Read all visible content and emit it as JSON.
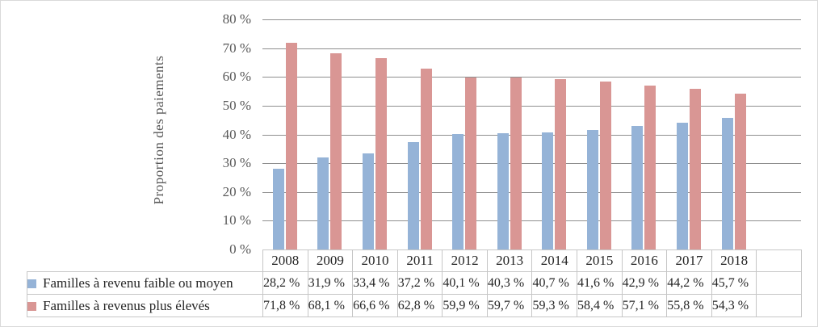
{
  "chart_data": {
    "type": "bar",
    "title": "",
    "xlabel": "",
    "ylabel": "Proportion des paiements",
    "ylim": [
      0,
      80
    ],
    "ytick_step": 10,
    "yticks": [
      "0 %",
      "10 %",
      "20 %",
      "30 %",
      "40 %",
      "50 %",
      "60 %",
      "70 %",
      "80 %"
    ],
    "grid": true,
    "legend_position": "data-table-left",
    "categories": [
      "2008",
      "2009",
      "2010",
      "2011",
      "2012",
      "2013",
      "2014",
      "2015",
      "2016",
      "2017",
      "2018"
    ],
    "trailing_empty_columns": 1,
    "series": [
      {
        "name": "Familles à revenu faible ou moyen",
        "color": "#95B3D7",
        "values": [
          28.2,
          31.9,
          33.4,
          37.2,
          40.1,
          40.3,
          40.7,
          41.6,
          42.9,
          44.2,
          45.7
        ],
        "labels": [
          "28,2 %",
          "31,9 %",
          "33,4 %",
          "37,2 %",
          "40,1 %",
          "40,3 %",
          "40,7 %",
          "41,6 %",
          "42,9 %",
          "44,2 %",
          "45,7 %"
        ]
      },
      {
        "name": "Familles à revenus plus élevés",
        "color": "#D99694",
        "values": [
          71.8,
          68.1,
          66.6,
          62.8,
          59.9,
          59.7,
          59.3,
          58.4,
          57.1,
          55.8,
          54.3
        ],
        "labels": [
          "71,8 %",
          "68,1 %",
          "66,6 %",
          "62,8 %",
          "59,9 %",
          "59,7 %",
          "59,3 %",
          "58,4 %",
          "57,1 %",
          "55,8 %",
          "54,3 %"
        ]
      }
    ]
  },
  "colors": {
    "series_low_income": "#95B3D7",
    "series_high_income": "#D99694",
    "gridline": "#8F8F8F",
    "table_border": "#C6C6C6",
    "axis_text": "#595959",
    "table_text": "#262626",
    "frame_border": "#D9D9D9"
  }
}
